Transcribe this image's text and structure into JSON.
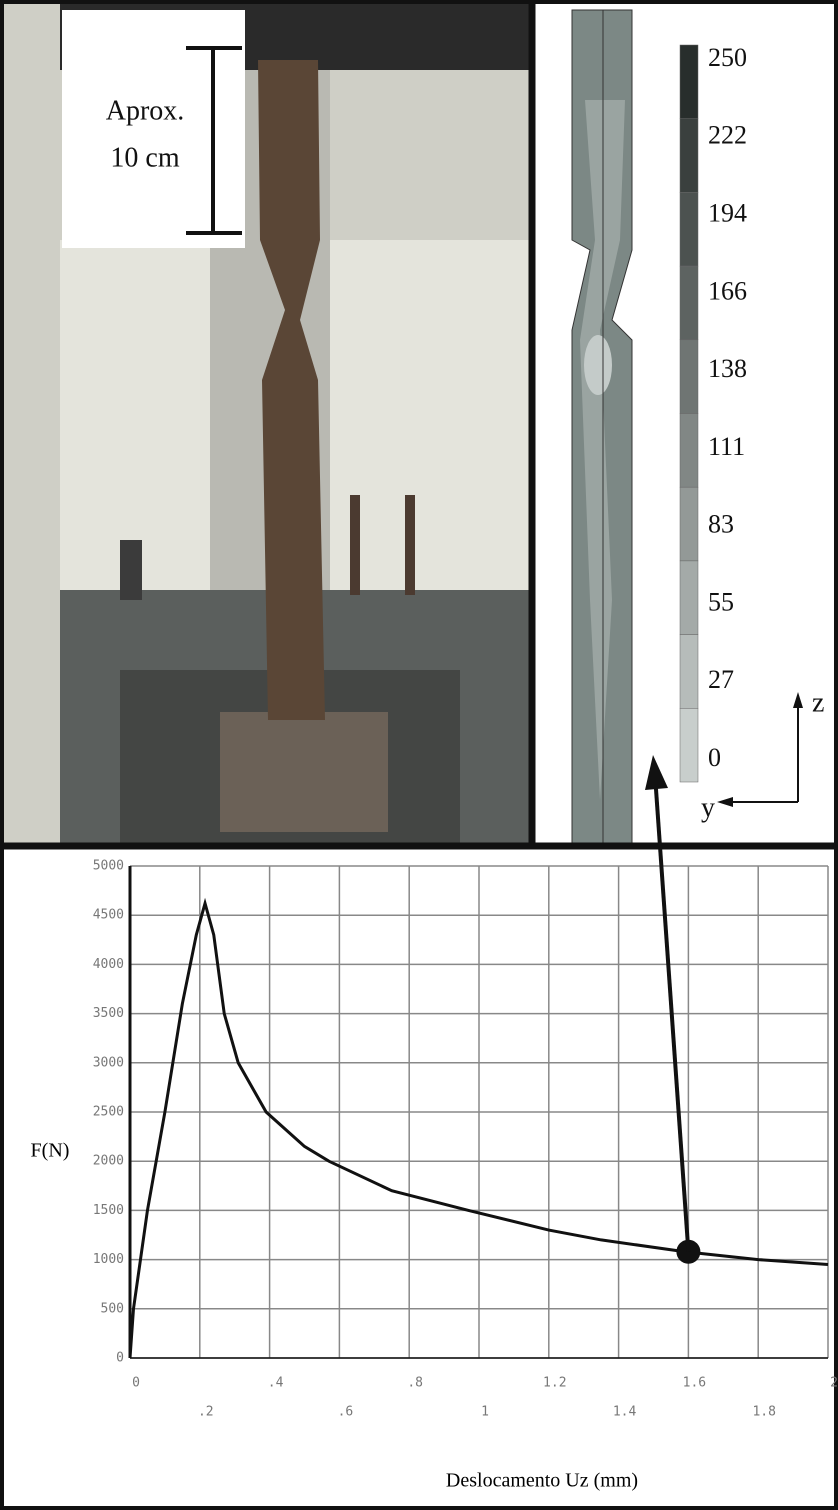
{
  "photo": {
    "annotation": [
      "Aprox.",
      "10 cm"
    ]
  },
  "contour": {
    "legend": [
      250,
      222,
      194,
      166,
      138,
      111,
      83,
      55,
      27,
      0
    ],
    "axes": [
      "z",
      "y"
    ]
  },
  "chart_data": {
    "type": "line",
    "ylabel": "F(N)",
    "xlabel": "Deslocamento Uz (mm)",
    "x": [
      0,
      0.01,
      0.05,
      0.1,
      0.15,
      0.19,
      0.215,
      0.24,
      0.27,
      0.31,
      0.39,
      0.5,
      0.57,
      0.75,
      0.97,
      1.2,
      1.35,
      1.59,
      1.8,
      2.0
    ],
    "values": [
      0,
      500,
      1500,
      2500,
      3600,
      4300,
      4620,
      4300,
      3500,
      3000,
      2500,
      2150,
      2000,
      1700,
      1500,
      1300,
      1200,
      1080,
      1000,
      950
    ],
    "color": "#111111",
    "highlight": {
      "x": 1.6,
      "y": 1080
    },
    "xlim": [
      0,
      2
    ],
    "ylim": [
      0,
      5000
    ],
    "xticks": [
      0,
      {
        "value": 0.2,
        "label": ".2"
      },
      {
        "value": 0.4,
        "label": ".4"
      },
      {
        "value": 0.6,
        "label": ".6"
      },
      {
        "value": 0.8,
        "label": ".8"
      },
      1,
      {
        "value": 1.2,
        "label": "1.2"
      },
      {
        "value": 1.4,
        "label": "1.4"
      },
      {
        "value": 1.6,
        "label": "1.6"
      },
      {
        "value": 1.8,
        "label": "1.8"
      },
      2
    ],
    "yticks": [
      0,
      500,
      1000,
      1500,
      2000,
      2500,
      3000,
      3500,
      4000,
      4500,
      5000
    ],
    "grid": true
  }
}
